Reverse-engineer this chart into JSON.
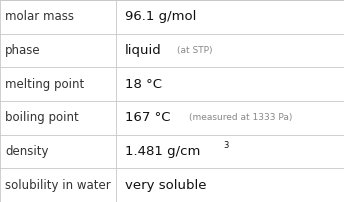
{
  "rows": [
    {
      "label": "molar mass",
      "value": "96.1 g/mol",
      "extra": null,
      "superscript": null
    },
    {
      "label": "phase",
      "value": "liquid",
      "extra": "(at STP)",
      "superscript": null
    },
    {
      "label": "melting point",
      "value": "18 °C",
      "extra": null,
      "superscript": null
    },
    {
      "label": "boiling point",
      "value": "167 °C",
      "extra": "(measured at 1333 Pa)",
      "superscript": null
    },
    {
      "label": "density",
      "value": "1.481 g/cm",
      "extra": null,
      "superscript": "3"
    },
    {
      "label": "solubility in water",
      "value": "very soluble",
      "extra": null,
      "superscript": null
    }
  ],
  "col_split": 0.338,
  "background_color": "#ffffff",
  "line_color": "#c8c8c8",
  "label_color": "#333333",
  "value_color": "#111111",
  "extra_color": "#888888",
  "label_fontsize": 8.5,
  "value_fontsize": 9.5,
  "extra_fontsize": 6.5,
  "super_fontsize": 6.0,
  "fig_width": 3.44,
  "fig_height": 2.02,
  "dpi": 100
}
